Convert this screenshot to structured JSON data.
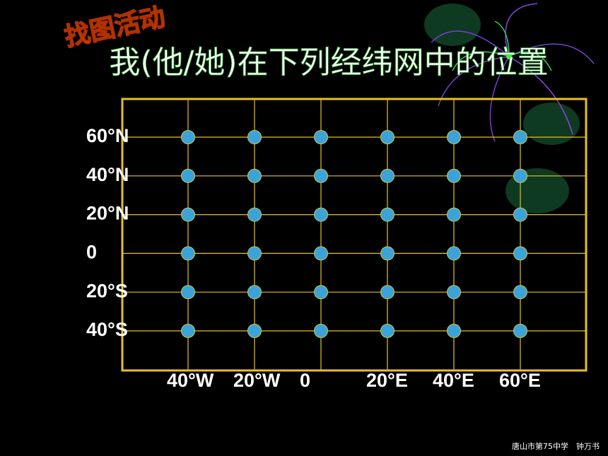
{
  "badge": "找图活动",
  "title": "我(他/她)在下列经纬网中的位置",
  "grid": {
    "latitudes": [
      "60°N",
      "40°N",
      "20°N",
      "0",
      "20°S",
      "40°S"
    ],
    "longitudes": [
      "40°W",
      "20°W",
      "0",
      "20°E",
      "40°E",
      "60°E"
    ]
  },
  "footer": "唐山市第75中学　钟万书"
}
